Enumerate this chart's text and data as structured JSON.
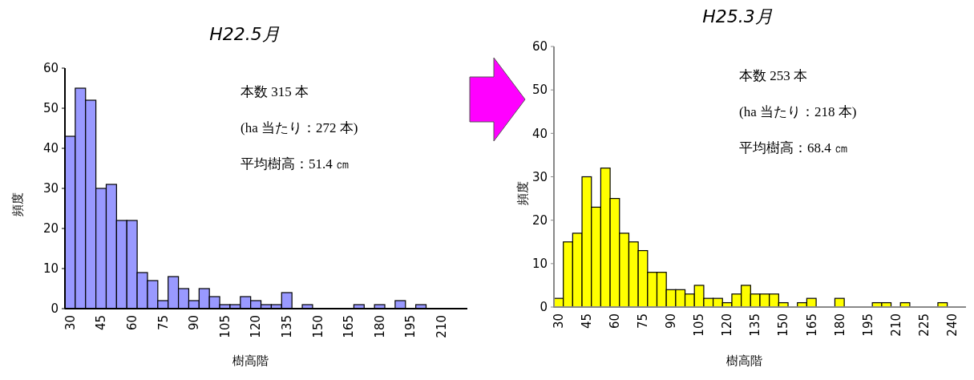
{
  "chart_data": [
    {
      "type": "bar",
      "title": "H22.5月",
      "xlabel": "樹高階",
      "ylabel": "頻度",
      "categories": [
        "30",
        null,
        null,
        "45",
        null,
        null,
        "60",
        null,
        null,
        "75",
        null,
        null,
        "90",
        null,
        null,
        "105",
        null,
        null,
        "120",
        null,
        null,
        "135",
        null,
        null,
        "150",
        null,
        null,
        "165",
        null,
        null,
        "180",
        null,
        null,
        "195",
        null,
        null,
        "210",
        null,
        null
      ],
      "values": [
        43,
        55,
        52,
        30,
        31,
        22,
        22,
        9,
        7,
        2,
        8,
        5,
        2,
        5,
        3,
        1,
        1,
        3,
        2,
        1,
        1,
        4,
        0,
        1,
        0,
        0,
        0,
        0,
        1,
        0,
        1,
        0,
        2,
        0,
        1,
        0,
        0,
        0,
        0
      ],
      "color": "#9999ff",
      "ylim": [
        0,
        60
      ],
      "yticks": [
        0,
        10,
        20,
        30,
        40,
        50,
        60
      ],
      "annotations": [
        "本数 315 本",
        "(ha 当たり：272 本)",
        "平均樹高：51.4 ㎝"
      ]
    },
    {
      "type": "bar",
      "title": "H25.3月",
      "xlabel": "樹高階",
      "ylabel": "頻度",
      "categories": [
        "30",
        null,
        null,
        "45",
        null,
        null,
        "60",
        null,
        null,
        "75",
        null,
        null,
        "90",
        null,
        null,
        "105",
        null,
        null,
        "120",
        null,
        null,
        "135",
        null,
        null,
        "150",
        null,
        null,
        "165",
        null,
        null,
        "180",
        null,
        null,
        "195",
        null,
        null,
        "210",
        null,
        null,
        "225",
        null,
        null,
        "240",
        null
      ],
      "values": [
        2,
        15,
        17,
        30,
        23,
        32,
        25,
        17,
        15,
        13,
        8,
        8,
        4,
        4,
        3,
        5,
        2,
        2,
        1,
        3,
        5,
        3,
        3,
        3,
        1,
        0,
        1,
        2,
        0,
        0,
        2,
        0,
        0,
        0,
        1,
        1,
        0,
        1,
        0,
        0,
        0,
        1,
        0,
        0
      ],
      "color": "#ffff00",
      "ylim": [
        0,
        60
      ],
      "yticks": [
        0,
        10,
        20,
        30,
        40,
        50,
        60
      ],
      "annotations": [
        "本数 253 本",
        "(ha 当たり：218 本)",
        "平均樹高：68.4 ㎝"
      ]
    }
  ]
}
